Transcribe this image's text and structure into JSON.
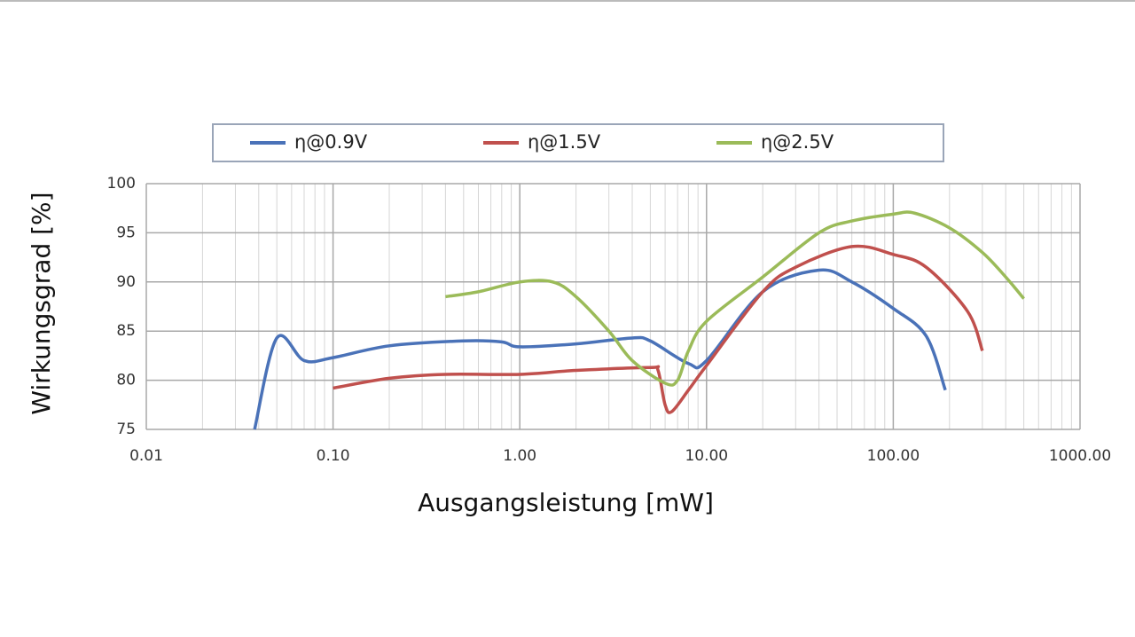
{
  "chart_data": {
    "type": "line",
    "x_label": "Ausgangsleistung [mW]",
    "y_label": "Wirkungsgrad [%]",
    "x_log": true,
    "grid": true,
    "legend": "top",
    "xlim": [
      0.01,
      1000
    ],
    "ylim": [
      75,
      100
    ],
    "xticks": [
      0.01,
      {
        "value": 0.1,
        "label": "0.10"
      },
      {
        "value": 1,
        "label": "1.00"
      },
      {
        "value": 10,
        "label": "10.00"
      },
      {
        "value": 100,
        "label": "100.00"
      },
      {
        "value": 1000,
        "label": "1000.00"
      }
    ],
    "yticks": [
      75,
      80,
      85,
      90,
      95,
      100
    ],
    "series": [
      {
        "name": "η@0.9V",
        "color": "#4a72b8",
        "x": [
          0.038,
          0.05,
          0.07,
          0.1,
          0.2,
          0.5,
          0.8,
          1,
          2,
          4,
          5,
          8,
          10,
          20,
          40,
          60,
          100,
          150,
          190
        ],
        "values": [
          75,
          84.3,
          82,
          82.3,
          83.5,
          84,
          83.9,
          83.4,
          83.7,
          84.3,
          84,
          81.7,
          82,
          89,
          91.2,
          90,
          87.3,
          84.5,
          79
        ]
      },
      {
        "name": "η@1.5V",
        "color": "#c0504d",
        "x": [
          0.1,
          0.2,
          0.4,
          1,
          2,
          5,
          5.5,
          6,
          6.5,
          8,
          10,
          20,
          30,
          60,
          100,
          150,
          250,
          300
        ],
        "values": [
          79.2,
          80.2,
          80.6,
          80.6,
          81,
          81.3,
          81,
          77.5,
          76.8,
          79,
          81.5,
          89,
          91.5,
          93.6,
          92.8,
          91.5,
          87,
          83
        ]
      },
      {
        "name": "η@2.5V",
        "color": "#9bbb59",
        "x": [
          0.4,
          0.6,
          1,
          1.5,
          2,
          3,
          4,
          6,
          7,
          8,
          10,
          20,
          40,
          60,
          100,
          130,
          200,
          300,
          400,
          500
        ],
        "values": [
          88.5,
          89,
          90,
          90,
          88.5,
          85,
          82,
          79.7,
          80,
          83,
          86,
          90.5,
          95,
          96.2,
          96.9,
          97,
          95.5,
          93,
          90.5,
          88.3
        ]
      }
    ]
  }
}
